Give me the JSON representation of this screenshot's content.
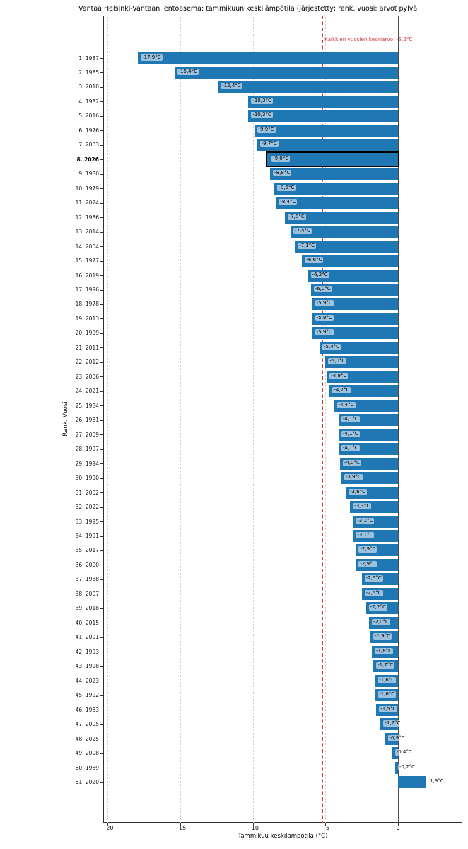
{
  "chart_data": {
    "type": "bar",
    "orientation": "horizontal",
    "title": "Vantaa Helsinki-Vantaan lentoasema: tammikuun keskilämpötila (järjestetty; rank. vuosi; arvot pylvä",
    "xlabel": "Tammikuu keskilämpötila (°C)",
    "ylabel": "Rank. Vuosi",
    "xlim": [
      -20.3,
      4.45
    ],
    "grid": "vertical dotted at x ticks",
    "x_ticks": [
      {
        "value": -20,
        "label": "−20"
      },
      {
        "value": -15,
        "label": "−15"
      },
      {
        "value": -10,
        "label": "−10"
      },
      {
        "value": -5,
        "label": "−5"
      },
      {
        "value": 0,
        "label": "0"
      }
    ],
    "bar_color": "#1f77b4",
    "highlight_edge_color": "#000000",
    "grid_color": "#cfcfcf",
    "zero_line_color": "#4c4c4c",
    "label_bbox_color": "rgba(255,255,255,0.55)",
    "highlighted_index": 7,
    "highlighted_category": "8. 2026",
    "mean_line": {
      "value": -5.2,
      "label": "Kaikkien vuosien keskiarvo: -5,2°C",
      "color": "#cd3e3e",
      "style": "dashed"
    },
    "rows": [
      {
        "rank": 1,
        "year": 1987,
        "category": "1. 1987",
        "value": -17.9,
        "label": "-17,9°C"
      },
      {
        "rank": 2,
        "year": 1985,
        "category": "2. 1985",
        "value": -15.4,
        "label": "-15,4°C"
      },
      {
        "rank": 3,
        "year": 2010,
        "category": "3. 2010",
        "value": -12.4,
        "label": "-12,4°C"
      },
      {
        "rank": 4,
        "year": 1982,
        "category": "4. 1982",
        "value": -10.3,
        "label": "-10,3°C"
      },
      {
        "rank": 5,
        "year": 2016,
        "category": "5. 2016",
        "value": -10.3,
        "label": "-10,3°C"
      },
      {
        "rank": 6,
        "year": 1976,
        "category": "6. 1976",
        "value": -9.9,
        "label": "-9,9°C"
      },
      {
        "rank": 7,
        "year": 2003,
        "category": "7. 2003",
        "value": -9.7,
        "label": "-9,7°C"
      },
      {
        "rank": 8,
        "year": 2026,
        "category": "8. 2026",
        "value": -9.0,
        "label": "-9,0°C"
      },
      {
        "rank": 9,
        "year": 1980,
        "category": "9. 1980",
        "value": -8.8,
        "label": "-8,8°C"
      },
      {
        "rank": 10,
        "year": 1979,
        "category": "10. 1979",
        "value": -8.5,
        "label": "-8,5°C"
      },
      {
        "rank": 11,
        "year": 2024,
        "category": "11. 2024",
        "value": -8.4,
        "label": "-8,4°C"
      },
      {
        "rank": 12,
        "year": 1986,
        "category": "12. 1986",
        "value": -7.8,
        "label": "-7,8°C"
      },
      {
        "rank": 13,
        "year": 2014,
        "category": "13. 2014",
        "value": -7.4,
        "label": "-7,4°C"
      },
      {
        "rank": 14,
        "year": 2004,
        "category": "14. 2004",
        "value": -7.1,
        "label": "-7,1°C"
      },
      {
        "rank": 15,
        "year": 1977,
        "category": "15. 1977",
        "value": -6.6,
        "label": "-6,6°C"
      },
      {
        "rank": 16,
        "year": 2019,
        "category": "16. 2019",
        "value": -6.2,
        "label": "-6,2°C"
      },
      {
        "rank": 17,
        "year": 1996,
        "category": "17. 1996",
        "value": -6.0,
        "label": "-6,0°C"
      },
      {
        "rank": 18,
        "year": 1978,
        "category": "18. 1978",
        "value": -5.9,
        "label": "-5,9°C"
      },
      {
        "rank": 19,
        "year": 2013,
        "category": "19. 2013",
        "value": -5.9,
        "label": "-5,9°C"
      },
      {
        "rank": 20,
        "year": 1999,
        "category": "20. 1999",
        "value": -5.9,
        "label": "-5,9°C"
      },
      {
        "rank": 21,
        "year": 2011,
        "category": "21. 2011",
        "value": -5.4,
        "label": "-5,4°C"
      },
      {
        "rank": 22,
        "year": 2012,
        "category": "22. 2012",
        "value": -5.0,
        "label": "-5,0°C"
      },
      {
        "rank": 23,
        "year": 2006,
        "category": "23. 2006",
        "value": -4.9,
        "label": "-4,9°C"
      },
      {
        "rank": 24,
        "year": 2021,
        "category": "24. 2021",
        "value": -4.7,
        "label": "-4,7°C"
      },
      {
        "rank": 25,
        "year": 1984,
        "category": "25. 1984",
        "value": -4.4,
        "label": "-4,4°C"
      },
      {
        "rank": 26,
        "year": 1981,
        "category": "26. 1981",
        "value": -4.1,
        "label": "-4,1°C"
      },
      {
        "rank": 27,
        "year": 2009,
        "category": "27. 2009",
        "value": -4.1,
        "label": "-4,1°C"
      },
      {
        "rank": 28,
        "year": 1997,
        "category": "28. 1997",
        "value": -4.1,
        "label": "-4,1°C"
      },
      {
        "rank": 29,
        "year": 1994,
        "category": "29. 1994",
        "value": -4.0,
        "label": "-4,0°C"
      },
      {
        "rank": 30,
        "year": 1990,
        "category": "30. 1990",
        "value": -3.9,
        "label": "-3,9°C"
      },
      {
        "rank": 31,
        "year": 2002,
        "category": "31. 2002",
        "value": -3.6,
        "label": "-3,6°C"
      },
      {
        "rank": 32,
        "year": 2022,
        "category": "32. 2022",
        "value": -3.3,
        "label": "-3,3°C"
      },
      {
        "rank": 33,
        "year": 1995,
        "category": "33. 1995",
        "value": -3.1,
        "label": "-3,1°C"
      },
      {
        "rank": 34,
        "year": 1991,
        "category": "34. 1991",
        "value": -3.1,
        "label": "-3,1°C"
      },
      {
        "rank": 35,
        "year": 2017,
        "category": "35. 2017",
        "value": -2.9,
        "label": "-2,9°C"
      },
      {
        "rank": 36,
        "year": 2000,
        "category": "36. 2000",
        "value": -2.9,
        "label": "-2,9°C"
      },
      {
        "rank": 37,
        "year": 1988,
        "category": "37. 1988",
        "value": -2.5,
        "label": "-2,5°C"
      },
      {
        "rank": 38,
        "year": 2007,
        "category": "38. 2007",
        "value": -2.5,
        "label": "-2,5°C"
      },
      {
        "rank": 39,
        "year": 2018,
        "category": "39. 2018",
        "value": -2.2,
        "label": "-2,2°C"
      },
      {
        "rank": 40,
        "year": 2015,
        "category": "40. 2015",
        "value": -2.0,
        "label": "-2,0°C"
      },
      {
        "rank": 41,
        "year": 2001,
        "category": "41. 2001",
        "value": -1.9,
        "label": "-1,9°C"
      },
      {
        "rank": 42,
        "year": 1993,
        "category": "42. 1993",
        "value": -1.8,
        "label": "-1,8°C"
      },
      {
        "rank": 43,
        "year": 1998,
        "category": "43. 1998",
        "value": -1.7,
        "label": "-1,7°C"
      },
      {
        "rank": 44,
        "year": 2023,
        "category": "44. 2023",
        "value": -1.6,
        "label": "-1,6°C"
      },
      {
        "rank": 45,
        "year": 1992,
        "category": "45. 1992",
        "value": -1.6,
        "label": "-1,6°C"
      },
      {
        "rank": 46,
        "year": 1983,
        "category": "46. 1983",
        "value": -1.5,
        "label": "-1,5°C"
      },
      {
        "rank": 47,
        "year": 2005,
        "category": "47. 2005",
        "value": -1.2,
        "label": "-1,2°C"
      },
      {
        "rank": 48,
        "year": 2025,
        "category": "48. 2025",
        "value": -0.9,
        "label": "-0,9°C"
      },
      {
        "rank": 49,
        "year": 2008,
        "category": "49. 2008",
        "value": -0.4,
        "label": "-0,4°C"
      },
      {
        "rank": 50,
        "year": 1989,
        "category": "50. 1989",
        "value": -0.2,
        "label": "-0,2°C"
      },
      {
        "rank": 51,
        "year": 2020,
        "category": "51. 2020",
        "value": 1.9,
        "label": "1,9°C"
      }
    ]
  }
}
